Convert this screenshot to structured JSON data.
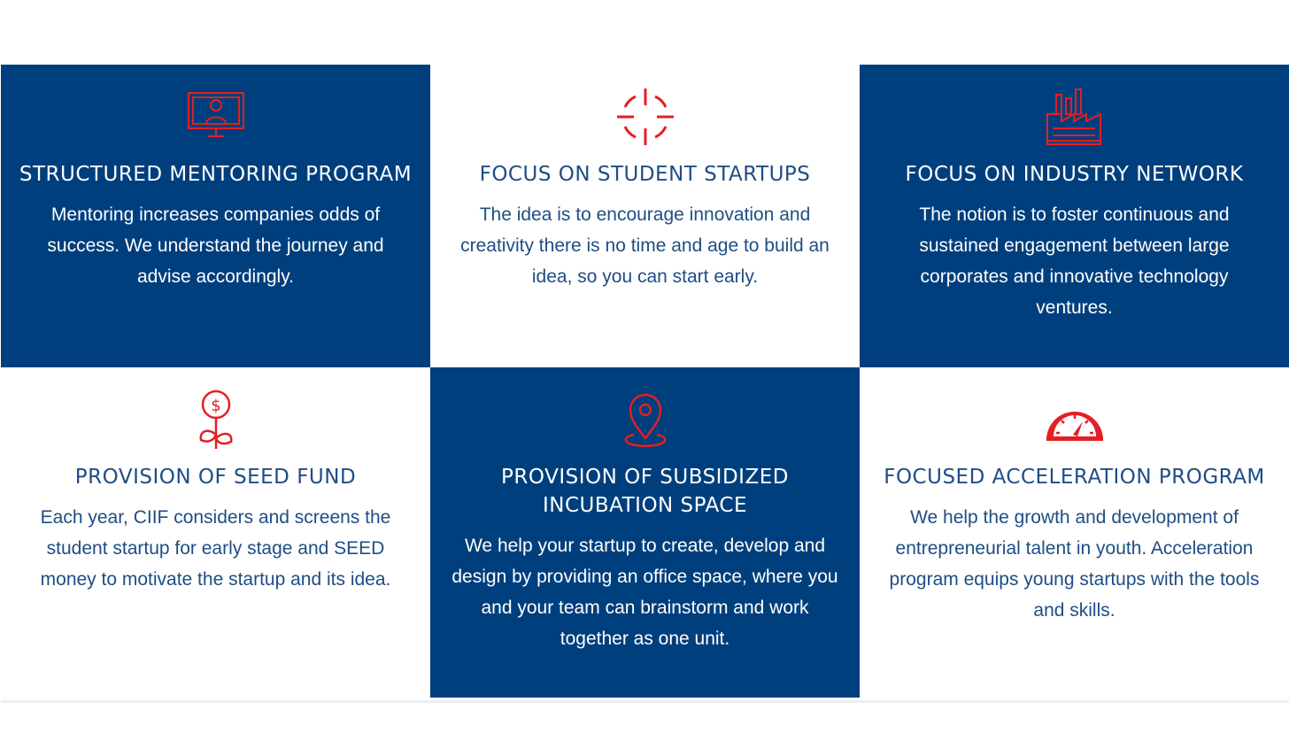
{
  "colors": {
    "primary": "#003f7d",
    "accent": "#e31e24",
    "text_on_light": "#1f4d85",
    "background": "#ffffff"
  },
  "features": [
    {
      "icon": "monitor-user-icon",
      "title": "STRUCTURED MENTORING PROGRAM",
      "description": "Mentoring increases companies odds of success. We understand the journey and advise accordingly."
    },
    {
      "icon": "target-crosshair-icon",
      "title": "FOCUS ON STUDENT STARTUPS",
      "description": "The idea is to encourage innovation and creativity there is no time and age to build an idea, so you can start early."
    },
    {
      "icon": "factory-icon",
      "title": "FOCUS ON INDUSTRY NETWORK",
      "description": "The notion is to foster continuous and sustained engagement between large corporates and innovative technology ventures."
    },
    {
      "icon": "money-plant-icon",
      "title": "PROVISION OF SEED FUND",
      "description": "Each year, CIIF considers and screens the student startup for early stage and SEED money to motivate the startup and its idea."
    },
    {
      "icon": "location-pin-icon",
      "title": "PROVISION OF SUBSIDIZED INCUBATION SPACE",
      "description": "We help your startup to create, develop and design by providing an office space, where you and your team can brainstorm and work together as one unit."
    },
    {
      "icon": "speedometer-icon",
      "title": "FOCUSED ACCELERATION PROGRAM",
      "description": "We help the growth and development of entrepreneurial talent in youth. Acceleration program equips young startups with the tools and skills."
    }
  ]
}
